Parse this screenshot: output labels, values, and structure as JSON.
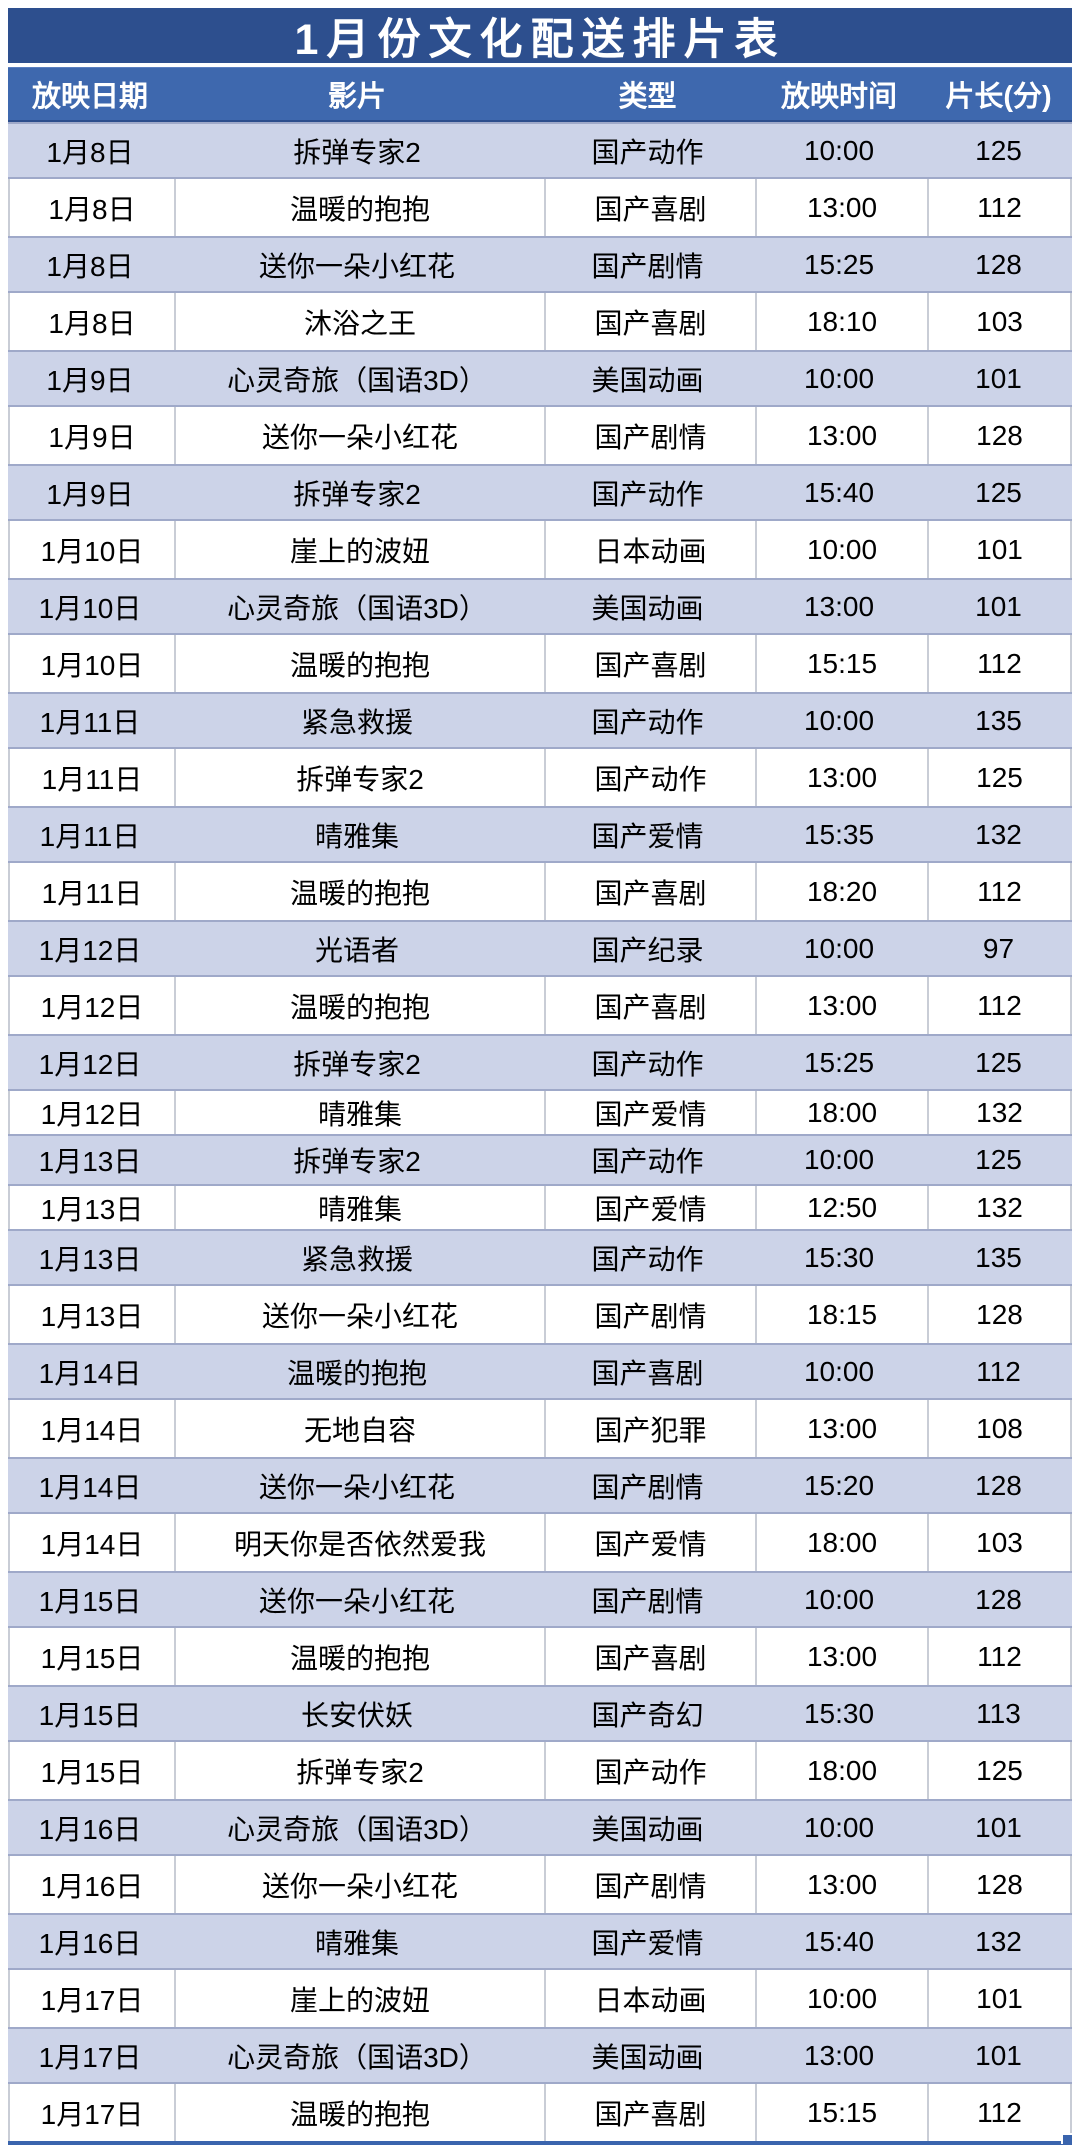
{
  "title": "1月份文化配送排片表",
  "table": {
    "columns": [
      "放映日期",
      "影片",
      "类型",
      "放映时间",
      "片长(分)"
    ],
    "rows": [
      {
        "date": "1月8日",
        "film": "拆弹专家2",
        "genre": "国产动作",
        "time": "10:00",
        "duration": "125"
      },
      {
        "date": "1月8日",
        "film": "温暖的抱抱",
        "genre": "国产喜剧",
        "time": "13:00",
        "duration": "112"
      },
      {
        "date": "1月8日",
        "film": "送你一朵小红花",
        "genre": "国产剧情",
        "time": "15:25",
        "duration": "128"
      },
      {
        "date": "1月8日",
        "film": "沐浴之王",
        "genre": "国产喜剧",
        "time": "18:10",
        "duration": "103"
      },
      {
        "date": "1月9日",
        "film": "心灵奇旅（国语3D）",
        "genre": "美国动画",
        "time": "10:00",
        "duration": "101"
      },
      {
        "date": "1月9日",
        "film": "送你一朵小红花",
        "genre": "国产剧情",
        "time": "13:00",
        "duration": "128"
      },
      {
        "date": "1月9日",
        "film": "拆弹专家2",
        "genre": "国产动作",
        "time": "15:40",
        "duration": "125"
      },
      {
        "date": "1月10日",
        "film": "崖上的波妞",
        "genre": "日本动画",
        "time": "10:00",
        "duration": "101"
      },
      {
        "date": "1月10日",
        "film": "心灵奇旅（国语3D）",
        "genre": "美国动画",
        "time": "13:00",
        "duration": "101"
      },
      {
        "date": "1月10日",
        "film": "温暖的抱抱",
        "genre": "国产喜剧",
        "time": "15:15",
        "duration": "112"
      },
      {
        "date": "1月11日",
        "film": "紧急救援",
        "genre": "国产动作",
        "time": "10:00",
        "duration": "135"
      },
      {
        "date": "1月11日",
        "film": "拆弹专家2",
        "genre": "国产动作",
        "time": "13:00",
        "duration": "125"
      },
      {
        "date": "1月11日",
        "film": "晴雅集",
        "genre": "国产爱情",
        "time": "15:35",
        "duration": "132"
      },
      {
        "date": "1月11日",
        "film": "温暖的抱抱",
        "genre": "国产喜剧",
        "time": "18:20",
        "duration": "112"
      },
      {
        "date": "1月12日",
        "film": "光语者",
        "genre": "国产纪录",
        "time": "10:00",
        "duration": "97"
      },
      {
        "date": "1月12日",
        "film": "温暖的抱抱",
        "genre": "国产喜剧",
        "time": "13:00",
        "duration": "112"
      },
      {
        "date": "1月12日",
        "film": "拆弹专家2",
        "genre": "国产动作",
        "time": "15:25",
        "duration": "125"
      },
      {
        "date": "1月12日",
        "film": "晴雅集",
        "genre": "国产爱情",
        "time": "18:00",
        "duration": "132"
      },
      {
        "date": "1月13日",
        "film": "拆弹专家2",
        "genre": "国产动作",
        "time": "10:00",
        "duration": "125"
      },
      {
        "date": "1月13日",
        "film": "晴雅集",
        "genre": "国产爱情",
        "time": "12:50",
        "duration": "132"
      },
      {
        "date": "1月13日",
        "film": "紧急救援",
        "genre": "国产动作",
        "time": "15:30",
        "duration": "135"
      },
      {
        "date": "1月13日",
        "film": "送你一朵小红花",
        "genre": "国产剧情",
        "time": "18:15",
        "duration": "128"
      },
      {
        "date": "1月14日",
        "film": "温暖的抱抱",
        "genre": "国产喜剧",
        "time": "10:00",
        "duration": "112"
      },
      {
        "date": "1月14日",
        "film": "无地自容",
        "genre": "国产犯罪",
        "time": "13:00",
        "duration": "108"
      },
      {
        "date": "1月14日",
        "film": "送你一朵小红花",
        "genre": "国产剧情",
        "time": "15:20",
        "duration": "128"
      },
      {
        "date": "1月14日",
        "film": "明天你是否依然爱我",
        "genre": "国产爱情",
        "time": "18:00",
        "duration": "103"
      },
      {
        "date": "1月15日",
        "film": "送你一朵小红花",
        "genre": "国产剧情",
        "time": "10:00",
        "duration": "128"
      },
      {
        "date": "1月15日",
        "film": "温暖的抱抱",
        "genre": "国产喜剧",
        "time": "13:00",
        "duration": "112"
      },
      {
        "date": "1月15日",
        "film": "长安伏妖",
        "genre": "国产奇幻",
        "time": "15:30",
        "duration": "113"
      },
      {
        "date": "1月15日",
        "film": "拆弹专家2",
        "genre": "国产动作",
        "time": "18:00",
        "duration": "125"
      },
      {
        "date": "1月16日",
        "film": "心灵奇旅（国语3D）",
        "genre": "美国动画",
        "time": "10:00",
        "duration": "101"
      },
      {
        "date": "1月16日",
        "film": "送你一朵小红花",
        "genre": "国产剧情",
        "time": "13:00",
        "duration": "128"
      },
      {
        "date": "1月16日",
        "film": "晴雅集",
        "genre": "国产爱情",
        "time": "15:40",
        "duration": "132"
      },
      {
        "date": "1月17日",
        "film": "崖上的波妞",
        "genre": "日本动画",
        "time": "10:00",
        "duration": "101"
      },
      {
        "date": "1月17日",
        "film": "心灵奇旅（国语3D）",
        "genre": "美国动画",
        "time": "13:00",
        "duration": "101"
      },
      {
        "date": "1月17日",
        "film": "温暖的抱抱",
        "genre": "国产喜剧",
        "time": "15:15",
        "duration": "112"
      }
    ]
  },
  "colors": {
    "page_bg": "#ffffff",
    "title_bar_bg": "#2d4f8e",
    "header_bg": "#3e68ae",
    "alt_row_bg": "#ccd3e8",
    "alt_row_border": "#9fa9c9",
    "cell_border": "#c9cdd6",
    "header_divider": "#2c4d8c",
    "selection_blue": "#3a64ad",
    "text_light": "#ffffff",
    "text_dark": "#000000"
  }
}
